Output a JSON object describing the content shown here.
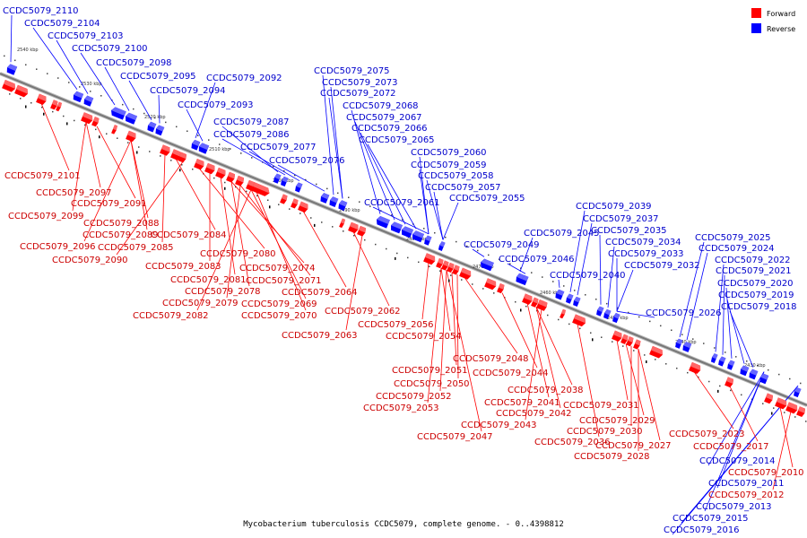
{
  "caption": "Mycobacterium tuberculosis CCDC5079, complete genome. - 0..4398812",
  "legend": {
    "forward": {
      "label": "Forward",
      "color": "#ff0000"
    },
    "reverse": {
      "label": "Reverse",
      "color": "#0000ff"
    }
  },
  "colors": {
    "axis": "#888888",
    "forward_text": "#cc0000",
    "reverse_text": "#0000cc"
  },
  "ticks": [
    "2540 kbp",
    "2530 kbp",
    "2520 kbp",
    "2510 kbp",
    "2500 kbp",
    "2490 kbp",
    "2480 kbp",
    "2470 kbp",
    "2460 kbp",
    "2450 kbp",
    "2440 kbp",
    "2430 kbp"
  ],
  "reverse_labels": [
    "CCDC5079_2110",
    "CCDC5079_2104",
    "CCDC5079_2103",
    "CCDC5079_2100",
    "CCDC5079_2098",
    "CCDC5079_2095",
    "CCDC5079_2094",
    "CCDC5079_2092",
    "CCDC5079_2093",
    "CCDC5079_2087",
    "CCDC5079_2086",
    "CCDC5079_2077",
    "CCDC5079_2076",
    "CCDC5079_2075",
    "CCDC5079_2073",
    "CCDC5079_2072",
    "CCDC5079_2068",
    "CCDC5079_2067",
    "CCDC5079_2066",
    "CCDC5079_2065",
    "CCDC5079_2060",
    "CCDC5079_2059",
    "CCDC5079_2058",
    "CCDC5079_2057",
    "CCDC5079_2061",
    "CCDC5079_2055",
    "CCDC5079_2049",
    "CCDC5079_2045",
    "CCDC5079_2046",
    "CCDC5079_2040",
    "CCDC5079_2039",
    "CCDC5079_2037",
    "CCDC5079_2035",
    "CCDC5079_2034",
    "CCDC5079_2033",
    "CCDC5079_2032",
    "CCDC5079_2026",
    "CCDC5079_2025",
    "CCDC5079_2024",
    "CCDC5079_2022",
    "CCDC5079_2021",
    "CCDC5079_2020",
    "CCDC5079_2019",
    "CCDC5079_2018",
    "CCDC5079_2014",
    "CCDC5079_2011",
    "CCDC5079_2013",
    "CCDC5079_2015",
    "CCDC5079_2016"
  ],
  "forward_labels": [
    "CCDC5079_2101",
    "CCDC5079_2097",
    "CCDC5079_2091",
    "CCDC5079_2099",
    "CCDC5079_2088",
    "CCDC5079_2089",
    "CCDC5079_2096",
    "CCDC5079_2085",
    "CCDC5079_2084",
    "CCDC5079_2090",
    "CCDC5079_2080",
    "CCDC5079_2083",
    "CCDC5079_2074",
    "CCDC5079_2081",
    "CCDC5079_2071",
    "CCDC5079_2078",
    "CCDC5079_2064",
    "CCDC5079_2079",
    "CCDC5079_2069",
    "CCDC5079_2082",
    "CCDC5079_2070",
    "CCDC5079_2062",
    "CCDC5079_2056",
    "CCDC5079_2063",
    "CCDC5079_2054",
    "CCDC5079_2048",
    "CCDC5079_2051",
    "CCDC5079_2044",
    "CCDC5079_2050",
    "CCDC5079_2038",
    "CCDC5079_2052",
    "CCDC5079_2041",
    "CCDC5079_2053",
    "CCDC5079_2042",
    "CCDC5079_2043",
    "CCDC5079_2031",
    "CCDC5079_2047",
    "CCDC5079_2029",
    "CCDC5079_2030",
    "CCDC5079_2036",
    "CCDC5079_2027",
    "CCDC5079_2028",
    "CCDC5079_2023",
    "CCDC5079_2017",
    "CCDC5079_2010",
    "CCDC5079_2012"
  ]
}
